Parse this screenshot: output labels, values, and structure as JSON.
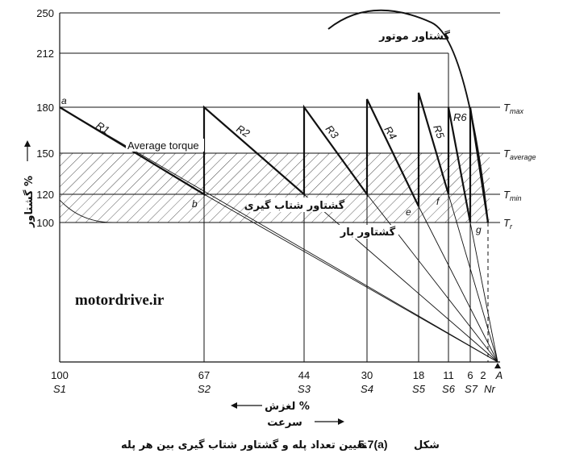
{
  "figure": {
    "y_ticks": [
      "250",
      "212",
      "180",
      "150",
      "120",
      "100"
    ],
    "slip_labels": [
      "100",
      "67",
      "44",
      "30",
      "18",
      "11",
      "6",
      "2"
    ],
    "step_labels": [
      "S1",
      "S2",
      "S3",
      "S4",
      "S5",
      "S6",
      "S7",
      "Nr"
    ],
    "axis_end_label": "A",
    "y_axis_title": "گشتاور %",
    "slip_axis_label": "لغزش %",
    "speed_axis_label": "سرعت",
    "motor_torque_label": "گشتاور موتور",
    "accel_torque_label": "گشتاور شتاب گیری",
    "load_torque_label": "گشتاور بار",
    "average_torque_label": "Average torque",
    "resistor_labels": [
      "R1",
      "R2",
      "R3",
      "R4",
      "R5",
      "R6"
    ],
    "point_labels": {
      "a": "a",
      "b": "b",
      "e": "e",
      "f": "f",
      "g": "g"
    },
    "right_labels": [
      "Tmax",
      "Taverage",
      "Tmin",
      "Tr"
    ],
    "watermark": "motordrive.ir",
    "caption_prefix": "شکل",
    "caption_number": "5.7(a)",
    "caption_text": "تعیین تعداد پله و گشتاور شتاب گیری بین هر پله"
  }
}
